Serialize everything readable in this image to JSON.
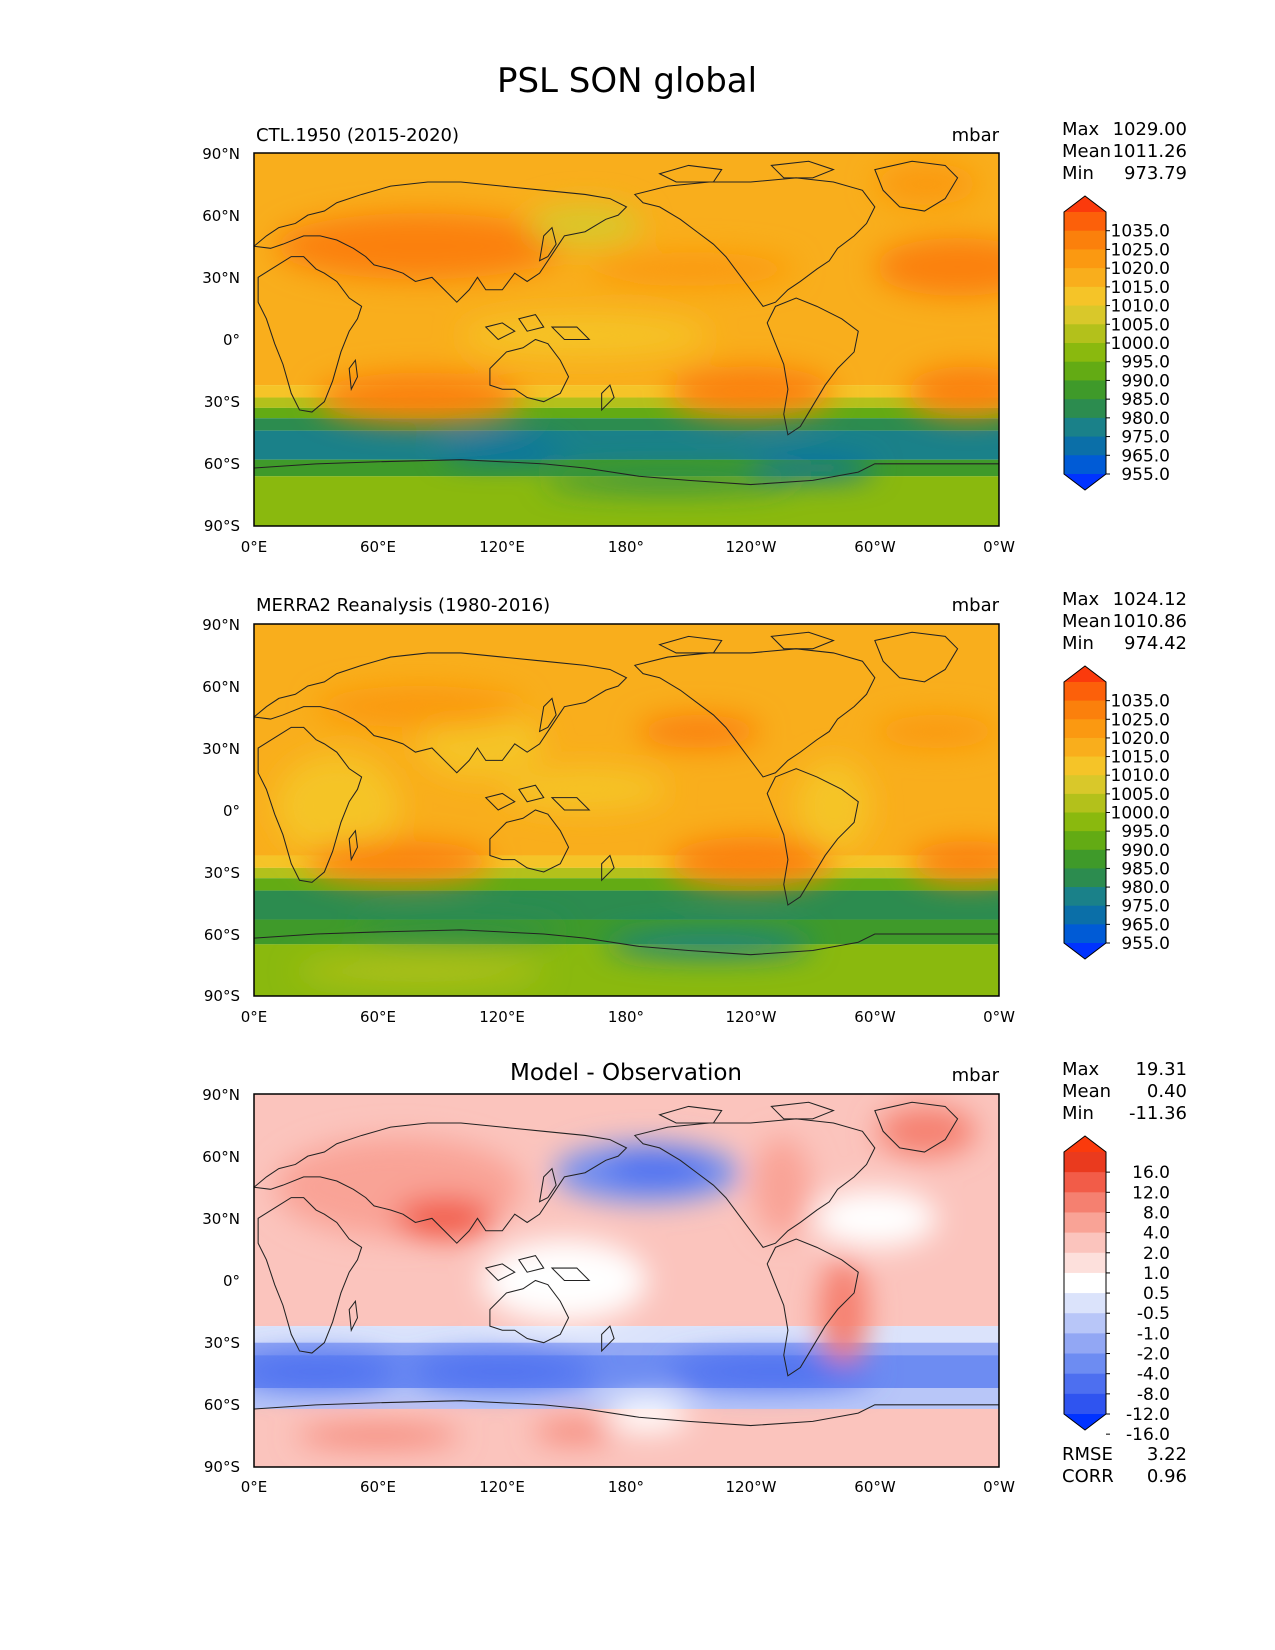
{
  "figure_title": "PSL SON global",
  "colors": {
    "main": [
      "#0033ff",
      "#005bd6",
      "#0b6fa8",
      "#1a8189",
      "#2c8c4f",
      "#3f9a2a",
      "#63ab14",
      "#8ab90e",
      "#b3c11b",
      "#d9c82a",
      "#f5c428",
      "#f9ae1c",
      "#fb9911",
      "#fb800c",
      "#fc600a",
      "#fb3a0c"
    ],
    "diff": [
      "#0033ff",
      "#2f54f0",
      "#4d6ff0",
      "#6d8cf2",
      "#92a7f4",
      "#b8c6f8",
      "#dbe3fb",
      "#ffffff",
      "#fde0dc",
      "#fbc4bd",
      "#f9a396",
      "#f58070",
      "#f25c48",
      "#ea3a1e",
      "#fb3a0c"
    ],
    "coast": "#222222"
  },
  "axes": {
    "lat_ticks": [
      "90°N",
      "60°N",
      "30°N",
      "0°",
      "30°S",
      "60°S",
      "90°S"
    ],
    "lon_ticks": [
      "0°E",
      "60°E",
      "120°E",
      "180°",
      "120°W",
      "60°W",
      "0°W"
    ]
  },
  "panels": [
    {
      "left_title": "CTL.1950 (2015-2020)",
      "center_title": "",
      "units": "mbar",
      "stats": [
        {
          "label": "Max",
          "value": "1029.00"
        },
        {
          "label": "Mean",
          "value": "1011.26"
        },
        {
          "label": "Min",
          "value": "973.79"
        }
      ],
      "colorbar_labels": [
        "1035.0",
        "1025.0",
        "1020.0",
        "1015.0",
        "1010.0",
        "1005.0",
        "1000.0",
        "995.0",
        "990.0",
        "985.0",
        "980.0",
        "975.0",
        "965.0",
        "955.0"
      ],
      "extra_stats": []
    },
    {
      "left_title": "MERRA2 Reanalysis (1980-2016)",
      "center_title": "",
      "units": "mbar",
      "stats": [
        {
          "label": "Max",
          "value": "1024.12"
        },
        {
          "label": "Mean",
          "value": "1010.86"
        },
        {
          "label": "Min",
          "value": "974.42"
        }
      ],
      "colorbar_labels": [
        "1035.0",
        "1025.0",
        "1020.0",
        "1015.0",
        "1010.0",
        "1005.0",
        "1000.0",
        "995.0",
        "990.0",
        "985.0",
        "980.0",
        "975.0",
        "965.0",
        "955.0"
      ],
      "extra_stats": []
    },
    {
      "left_title": "",
      "center_title": "Model - Observation",
      "units": "mbar",
      "stats": [
        {
          "label": "Max",
          "value": "19.31"
        },
        {
          "label": "Mean",
          "value": "0.40"
        },
        {
          "label": "Min",
          "value": "-11.36"
        }
      ],
      "colorbar_labels": [
        "16.0",
        "12.0",
        "8.0",
        "4.0",
        "2.0",
        "1.0",
        "0.5",
        "-0.5",
        "-1.0",
        "-2.0",
        "-4.0",
        "-8.0",
        "-12.0",
        "-16.0"
      ],
      "extra_stats": [
        {
          "label": "RMSE",
          "value": "3.22"
        },
        {
          "label": "CORR",
          "value": "0.96"
        }
      ]
    }
  ]
}
